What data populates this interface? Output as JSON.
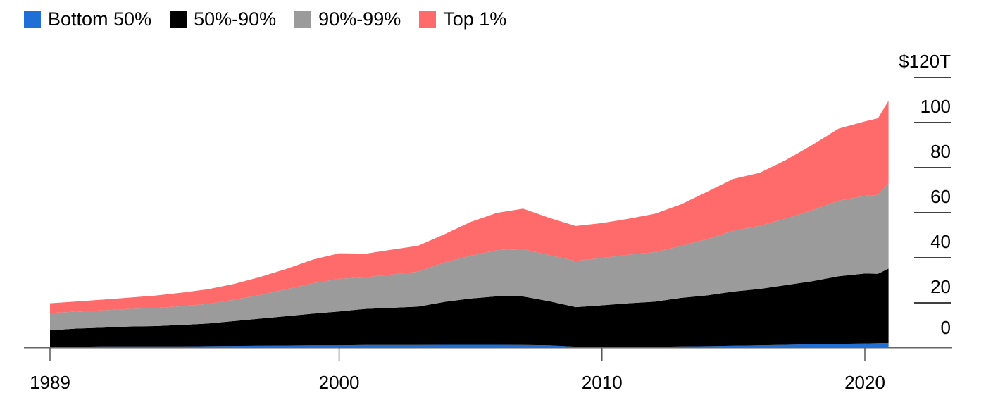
{
  "chart_data": {
    "type": "area",
    "stacked": true,
    "x_unit": "year",
    "y_unit": "$T",
    "xlim": [
      1989,
      2023.5
    ],
    "ylim": [
      -1,
      120
    ],
    "x_ticks": [
      1989,
      2000,
      2010,
      2020
    ],
    "x_tick_labels": [
      "1989",
      "2000",
      "2010",
      "2020"
    ],
    "y_ticks": [
      0,
      20,
      40,
      60,
      80,
      100,
      120
    ],
    "y_tick_labels": [
      "0",
      "20",
      "40",
      "60",
      "80",
      "100",
      "$120T"
    ],
    "grid": false,
    "legend_position": "top-left",
    "x": [
      1989,
      1990,
      1991,
      1992,
      1993,
      1994,
      1995,
      1996,
      1997,
      1998,
      1999,
      2000,
      2001,
      2002,
      2003,
      2004,
      2005,
      2006,
      2007,
      2008,
      2009,
      2010,
      2011,
      2012,
      2013,
      2014,
      2015,
      2016,
      2017,
      2018,
      2019,
      2020,
      2020.5,
      2020.9
    ],
    "series": [
      {
        "name": "Bottom 50%",
        "color": "#1f6fd6",
        "values": [
          0.5,
          0.6,
          0.7,
          0.7,
          0.7,
          0.7,
          0.8,
          0.9,
          1.0,
          1.1,
          1.2,
          1.2,
          1.3,
          1.3,
          1.3,
          1.4,
          1.4,
          1.4,
          1.3,
          1.2,
          0.6,
          0.4,
          0.3,
          0.5,
          0.7,
          0.8,
          1.0,
          1.2,
          1.4,
          1.6,
          1.8,
          2.0,
          2.1,
          2.2
        ]
      },
      {
        "name": "50%-90%",
        "color": "#000000",
        "values": [
          7.3,
          8.0,
          8.3,
          8.8,
          9.0,
          9.5,
          10.0,
          11.0,
          12.0,
          13.0,
          14.0,
          15.0,
          16.0,
          16.5,
          17.0,
          19.0,
          20.5,
          21.5,
          21.5,
          19.5,
          17.5,
          18.5,
          19.5,
          20.0,
          21.5,
          22.5,
          24.0,
          25.0,
          26.5,
          28.0,
          30.0,
          31.0,
          30.8,
          33.0
        ]
      },
      {
        "name": "90%-99%",
        "color": "#9b9b9b",
        "values": [
          7.7,
          7.5,
          7.7,
          7.8,
          8.0,
          8.3,
          8.7,
          9.5,
          10.5,
          12.0,
          13.5,
          14.5,
          14.0,
          14.8,
          15.5,
          17.5,
          19.0,
          20.5,
          21.0,
          20.5,
          20.5,
          21.0,
          21.5,
          22.0,
          23.0,
          25.0,
          27.0,
          28.0,
          29.5,
          31.5,
          33.5,
          34.5,
          35.0,
          38.0
        ]
      },
      {
        "name": "Top 1%",
        "color": "#ff6b6b",
        "values": [
          4.3,
          4.5,
          4.7,
          5.0,
          5.5,
          6.0,
          6.5,
          7.0,
          8.0,
          9.0,
          10.5,
          11.3,
          10.5,
          11.0,
          11.5,
          12.5,
          15.0,
          16.5,
          18.0,
          16.5,
          15.5,
          15.5,
          16.0,
          17.0,
          18.5,
          21.0,
          23.0,
          23.5,
          26.0,
          29.0,
          32.0,
          33.0,
          34.0,
          36.5
        ]
      }
    ]
  }
}
